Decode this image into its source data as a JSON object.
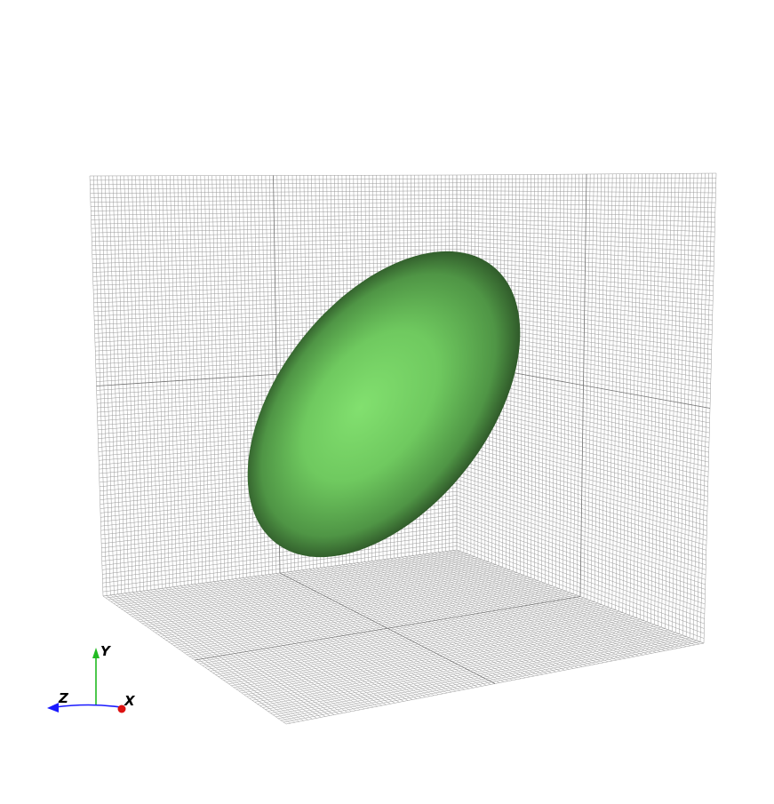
{
  "scene": {
    "background": "#ffffff",
    "grid_color": "#9a9a9a",
    "object": {
      "shape": "ellipsoid",
      "color": "#7fdc6e",
      "shadow_color": "#1f3a1b"
    }
  },
  "orientation_axes": {
    "y_label": "Y",
    "z_label": "Z",
    "x_label": "X",
    "y_color": "#22bb22",
    "z_color": "#1a1aff",
    "x_color": "#dd1111"
  }
}
